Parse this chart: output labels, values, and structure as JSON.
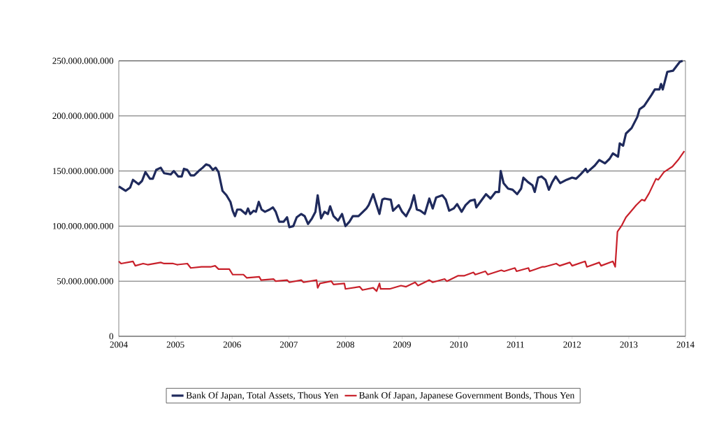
{
  "chart_data": {
    "type": "line",
    "xlim": [
      2004,
      2014
    ],
    "xticks": [
      2004,
      2005,
      2006,
      2007,
      2008,
      2009,
      2010,
      2011,
      2012,
      2013,
      2014
    ],
    "ylim": [
      0,
      250000000000
    ],
    "yticks": [
      {
        "value": 0,
        "label": "0"
      },
      {
        "value": 50000000000,
        "label": "50.000.000.000"
      },
      {
        "value": 100000000000,
        "label": "100.000.000.000"
      },
      {
        "value": 150000000000,
        "label": "150.000.000.000"
      },
      {
        "value": 200000000000,
        "label": "200.000.000.000"
      },
      {
        "value": 250000000000,
        "label": "250.000.000.000"
      }
    ],
    "grid": "y",
    "legend": "bottom",
    "series": [
      {
        "name": "Bank Of Japan, Total Assets, Thous Yen",
        "color": "#1f2a5c",
        "x": [
          2004.0,
          2004.12,
          2004.2,
          2004.25,
          2004.35,
          2004.41,
          2004.47,
          2004.55,
          2004.6,
          2004.66,
          2004.74,
          2004.8,
          2004.92,
          2004.97,
          2005.05,
          2005.11,
          2005.15,
          2005.21,
          2005.27,
          2005.33,
          2005.41,
          2005.48,
          2005.54,
          2005.6,
          2005.66,
          2005.71,
          2005.76,
          2005.83,
          2005.9,
          2005.97,
          2006.01,
          2006.05,
          2006.09,
          2006.15,
          2006.24,
          2006.28,
          2006.32,
          2006.38,
          2006.42,
          2006.47,
          2006.52,
          2006.58,
          2006.66,
          2006.72,
          2006.77,
          2006.83,
          2006.91,
          2006.97,
          2007.01,
          2007.08,
          2007.14,
          2007.22,
          2007.28,
          2007.34,
          2007.41,
          2007.47,
          2007.51,
          2007.57,
          2007.63,
          2007.69,
          2007.73,
          2007.79,
          2007.87,
          2007.94,
          2008.0,
          2008.07,
          2008.13,
          2008.23,
          2008.31,
          2008.37,
          2008.41,
          2008.49,
          2008.55,
          2008.6,
          2008.65,
          2008.69,
          2008.8,
          2008.84,
          2008.94,
          2009.0,
          2009.07,
          2009.15,
          2009.21,
          2009.26,
          2009.32,
          2009.4,
          2009.48,
          2009.54,
          2009.6,
          2009.71,
          2009.77,
          2009.83,
          2009.91,
          2009.97,
          2010.05,
          2010.12,
          2010.2,
          2010.28,
          2010.31,
          2010.38,
          2010.48,
          2010.56,
          2010.65,
          2010.71,
          2010.74,
          2010.79,
          2010.87,
          2010.95,
          2011.03,
          2011.1,
          2011.14,
          2011.22,
          2011.3,
          2011.34,
          2011.4,
          2011.46,
          2011.53,
          2011.59,
          2011.65,
          2011.71,
          2011.79,
          2011.9,
          2012.0,
          2012.07,
          2012.15,
          2012.24,
          2012.27,
          2012.4,
          2012.48,
          2012.58,
          2012.66,
          2012.72,
          2012.81,
          2012.84,
          2012.9,
          2012.95,
          2013.05,
          2013.15,
          2013.19,
          2013.27,
          2013.4,
          2013.46,
          2013.54,
          2013.57,
          2013.6,
          2013.68,
          2013.78,
          2013.9,
          2013.95
        ],
        "values": [
          136000000000,
          132000000000,
          135000000000,
          142000000000,
          138000000000,
          141000000000,
          149000000000,
          143000000000,
          143000000000,
          151000000000,
          153000000000,
          148000000000,
          147000000000,
          150000000000,
          145000000000,
          145000000000,
          152000000000,
          151000000000,
          146000000000,
          146000000000,
          150000000000,
          153000000000,
          156000000000,
          155000000000,
          151000000000,
          153000000000,
          149000000000,
          132000000000,
          128000000000,
          122000000000,
          114000000000,
          109000000000,
          115000000000,
          115000000000,
          111000000000,
          116000000000,
          111000000000,
          114000000000,
          113000000000,
          122000000000,
          115000000000,
          113000000000,
          115000000000,
          117000000000,
          113000000000,
          104000000000,
          104000000000,
          108000000000,
          99000000000,
          100000000000,
          108000000000,
          111000000000,
          109000000000,
          102000000000,
          107000000000,
          113000000000,
          128000000000,
          107000000000,
          113000000000,
          111000000000,
          118000000000,
          109000000000,
          105000000000,
          111000000000,
          100000000000,
          104000000000,
          109000000000,
          109000000000,
          113000000000,
          116000000000,
          119000000000,
          129000000000,
          119000000000,
          111000000000,
          124000000000,
          125000000000,
          124000000000,
          114000000000,
          119000000000,
          113000000000,
          109000000000,
          117000000000,
          128000000000,
          115000000000,
          114000000000,
          111000000000,
          125000000000,
          116000000000,
          126000000000,
          128000000000,
          124000000000,
          114000000000,
          116000000000,
          120000000000,
          113000000000,
          119000000000,
          123000000000,
          124000000000,
          117000000000,
          122000000000,
          129000000000,
          125000000000,
          131000000000,
          131000000000,
          150000000000,
          139000000000,
          134000000000,
          133000000000,
          129000000000,
          134000000000,
          144000000000,
          140000000000,
          137000000000,
          131000000000,
          144000000000,
          145000000000,
          142000000000,
          133000000000,
          140000000000,
          145000000000,
          139000000000,
          142000000000,
          144000000000,
          143000000000,
          147000000000,
          152000000000,
          149000000000,
          155000000000,
          160000000000,
          157000000000,
          161000000000,
          166000000000,
          163000000000,
          175000000000,
          173000000000,
          184000000000,
          189000000000,
          199000000000,
          206000000000,
          209000000000,
          219000000000,
          224000000000,
          224000000000,
          229000000000,
          224000000000,
          240000000000,
          241000000000,
          249000000000,
          250000000000
        ]
      },
      {
        "name": "Bank Of Japan, Japanese Government Bonds, Thous Yen",
        "color": "#c8202a",
        "x": [
          2004.0,
          2004.04,
          2004.25,
          2004.29,
          2004.43,
          2004.51,
          2004.74,
          2004.8,
          2004.96,
          2005.03,
          2005.21,
          2005.27,
          2005.46,
          2005.62,
          2005.7,
          2005.76,
          2005.95,
          2006.01,
          2006.2,
          2006.26,
          2006.48,
          2006.51,
          2006.73,
          2006.77,
          2006.97,
          2007.01,
          2007.22,
          2007.26,
          2007.49,
          2007.51,
          2007.55,
          2007.75,
          2007.79,
          2007.98,
          2008.0,
          2008.25,
          2008.3,
          2008.49,
          2008.55,
          2008.6,
          2008.62,
          2008.78,
          2008.98,
          2009.07,
          2009.23,
          2009.28,
          2009.48,
          2009.54,
          2009.75,
          2009.79,
          2009.99,
          2010.1,
          2010.26,
          2010.29,
          2010.47,
          2010.51,
          2010.75,
          2010.8,
          2010.99,
          2011.02,
          2011.23,
          2011.25,
          2011.47,
          2011.51,
          2011.72,
          2011.78,
          2011.96,
          2012.0,
          2012.23,
          2012.26,
          2012.48,
          2012.51,
          2012.72,
          2012.76,
          2012.8,
          2012.88,
          2012.95,
          2013.05,
          2013.13,
          2013.23,
          2013.28,
          2013.36,
          2013.48,
          2013.52,
          2013.62,
          2013.77,
          2013.87,
          2013.98
        ],
        "values": [
          68000000000,
          66000000000,
          68000000000,
          64000000000,
          66000000000,
          65000000000,
          67000000000,
          66000000000,
          66000000000,
          65000000000,
          66000000000,
          62000000000,
          63000000000,
          63000000000,
          64000000000,
          61000000000,
          61000000000,
          56000000000,
          56000000000,
          53000000000,
          54000000000,
          51000000000,
          52000000000,
          50000000000,
          51000000000,
          49000000000,
          51000000000,
          49000000000,
          51000000000,
          44000000000,
          48000000000,
          50000000000,
          47000000000,
          48000000000,
          43000000000,
          45000000000,
          42000000000,
          44000000000,
          41000000000,
          48000000000,
          43000000000,
          43000000000,
          46000000000,
          45000000000,
          49000000000,
          46000000000,
          51000000000,
          49000000000,
          52000000000,
          50000000000,
          55000000000,
          55000000000,
          58000000000,
          56000000000,
          59000000000,
          56000000000,
          60000000000,
          59000000000,
          62000000000,
          59000000000,
          62000000000,
          59000000000,
          63000000000,
          63000000000,
          66000000000,
          64000000000,
          67000000000,
          64000000000,
          68000000000,
          63000000000,
          67000000000,
          64000000000,
          68000000000,
          63000000000,
          95000000000,
          101000000000,
          108000000000,
          114000000000,
          119000000000,
          124000000000,
          123000000000,
          130000000000,
          143000000000,
          142000000000,
          149000000000,
          154000000000,
          160000000000,
          168000000000
        ]
      }
    ]
  }
}
